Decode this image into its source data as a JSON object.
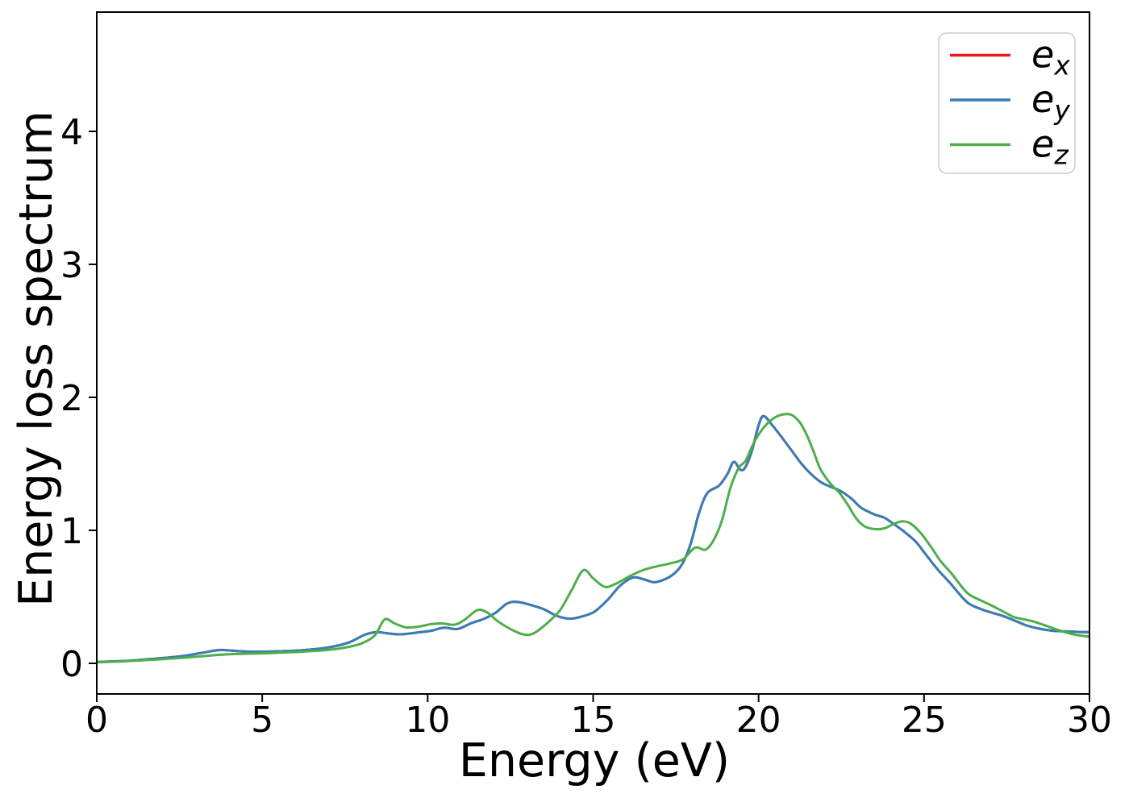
{
  "figure": {
    "background": "#ffffff"
  },
  "chart_data": {
    "type": "line",
    "title": "",
    "xlabel": "Energy (eV)",
    "ylabel": "Energy loss spectrum",
    "xlim": [
      0,
      30
    ],
    "ylim": [
      -0.23,
      4.9
    ],
    "xticks": [
      0,
      5,
      10,
      15,
      20,
      25,
      30
    ],
    "yticks": [
      0,
      1,
      2,
      3,
      4
    ],
    "grid": false,
    "legend_position": "upper right",
    "axis_color": "#000000",
    "legend_border_color": "#cccccc",
    "series": [
      {
        "name": "e_x",
        "label_main": "e",
        "label_sub": "x",
        "color": "#e41a1c",
        "visibility": "hidden under e_y (curves coincide)",
        "points": [
          [
            0,
            0.01
          ],
          [
            0.5,
            0.015
          ],
          [
            1,
            0.02
          ],
          [
            1.5,
            0.03
          ],
          [
            2,
            0.04
          ],
          [
            2.6,
            0.055
          ],
          [
            3.2,
            0.08
          ],
          [
            3.7,
            0.1
          ],
          [
            4.1,
            0.095
          ],
          [
            4.6,
            0.088
          ],
          [
            5.1,
            0.088
          ],
          [
            5.7,
            0.092
          ],
          [
            6.3,
            0.1
          ],
          [
            7,
            0.12
          ],
          [
            7.6,
            0.155
          ],
          [
            8.1,
            0.215
          ],
          [
            8.45,
            0.235
          ],
          [
            8.8,
            0.225
          ],
          [
            9.2,
            0.218
          ],
          [
            9.7,
            0.232
          ],
          [
            10.1,
            0.245
          ],
          [
            10.5,
            0.268
          ],
          [
            10.9,
            0.258
          ],
          [
            11.3,
            0.3
          ],
          [
            11.7,
            0.335
          ],
          [
            12.05,
            0.38
          ],
          [
            12.4,
            0.45
          ],
          [
            12.7,
            0.462
          ],
          [
            13.1,
            0.44
          ],
          [
            13.5,
            0.408
          ],
          [
            13.9,
            0.357
          ],
          [
            14.3,
            0.336
          ],
          [
            14.7,
            0.355
          ],
          [
            15.05,
            0.39
          ],
          [
            15.45,
            0.48
          ],
          [
            15.8,
            0.58
          ],
          [
            16.2,
            0.645
          ],
          [
            16.55,
            0.63
          ],
          [
            16.85,
            0.61
          ],
          [
            17.15,
            0.63
          ],
          [
            17.45,
            0.675
          ],
          [
            17.7,
            0.75
          ],
          [
            17.95,
            0.9
          ],
          [
            18.2,
            1.13
          ],
          [
            18.45,
            1.28
          ],
          [
            18.8,
            1.335
          ],
          [
            19.05,
            1.42
          ],
          [
            19.25,
            1.515
          ],
          [
            19.45,
            1.455
          ],
          [
            19.6,
            1.475
          ],
          [
            19.8,
            1.6
          ],
          [
            20,
            1.79
          ],
          [
            20.15,
            1.86
          ],
          [
            20.4,
            1.795
          ],
          [
            20.7,
            1.7
          ],
          [
            21,
            1.6
          ],
          [
            21.3,
            1.5
          ],
          [
            21.6,
            1.42
          ],
          [
            21.9,
            1.36
          ],
          [
            22.2,
            1.325
          ],
          [
            22.45,
            1.3
          ],
          [
            22.8,
            1.24
          ],
          [
            23.1,
            1.17
          ],
          [
            23.5,
            1.12
          ],
          [
            23.8,
            1.095
          ],
          [
            24.1,
            1.045
          ],
          [
            24.4,
            0.99
          ],
          [
            24.75,
            0.915
          ],
          [
            25.05,
            0.82
          ],
          [
            25.4,
            0.71
          ],
          [
            25.8,
            0.6
          ],
          [
            26.3,
            0.46
          ],
          [
            26.7,
            0.41
          ],
          [
            27,
            0.385
          ],
          [
            27.4,
            0.355
          ],
          [
            27.8,
            0.315
          ],
          [
            28.1,
            0.285
          ],
          [
            28.5,
            0.26
          ],
          [
            28.9,
            0.245
          ],
          [
            29.3,
            0.24
          ],
          [
            29.7,
            0.236
          ],
          [
            30,
            0.235
          ]
        ]
      },
      {
        "name": "e_y",
        "label_main": "e",
        "label_sub": "y",
        "color": "#377eb8",
        "visibility": "visible",
        "points": [
          [
            0,
            0.01
          ],
          [
            0.5,
            0.015
          ],
          [
            1,
            0.02
          ],
          [
            1.5,
            0.03
          ],
          [
            2,
            0.04
          ],
          [
            2.6,
            0.055
          ],
          [
            3.2,
            0.08
          ],
          [
            3.7,
            0.1
          ],
          [
            4.1,
            0.095
          ],
          [
            4.6,
            0.088
          ],
          [
            5.1,
            0.088
          ],
          [
            5.7,
            0.092
          ],
          [
            6.3,
            0.1
          ],
          [
            7,
            0.12
          ],
          [
            7.6,
            0.155
          ],
          [
            8.1,
            0.215
          ],
          [
            8.45,
            0.235
          ],
          [
            8.8,
            0.225
          ],
          [
            9.2,
            0.218
          ],
          [
            9.7,
            0.232
          ],
          [
            10.1,
            0.245
          ],
          [
            10.5,
            0.268
          ],
          [
            10.9,
            0.258
          ],
          [
            11.3,
            0.3
          ],
          [
            11.7,
            0.335
          ],
          [
            12.05,
            0.38
          ],
          [
            12.4,
            0.45
          ],
          [
            12.7,
            0.462
          ],
          [
            13.1,
            0.44
          ],
          [
            13.5,
            0.408
          ],
          [
            13.9,
            0.357
          ],
          [
            14.3,
            0.336
          ],
          [
            14.7,
            0.355
          ],
          [
            15.05,
            0.39
          ],
          [
            15.45,
            0.48
          ],
          [
            15.8,
            0.58
          ],
          [
            16.2,
            0.645
          ],
          [
            16.55,
            0.63
          ],
          [
            16.85,
            0.61
          ],
          [
            17.15,
            0.63
          ],
          [
            17.45,
            0.675
          ],
          [
            17.7,
            0.75
          ],
          [
            17.95,
            0.9
          ],
          [
            18.2,
            1.13
          ],
          [
            18.45,
            1.28
          ],
          [
            18.8,
            1.335
          ],
          [
            19.05,
            1.42
          ],
          [
            19.25,
            1.515
          ],
          [
            19.45,
            1.455
          ],
          [
            19.6,
            1.475
          ],
          [
            19.8,
            1.6
          ],
          [
            20,
            1.79
          ],
          [
            20.15,
            1.86
          ],
          [
            20.4,
            1.795
          ],
          [
            20.7,
            1.7
          ],
          [
            21,
            1.6
          ],
          [
            21.3,
            1.5
          ],
          [
            21.6,
            1.42
          ],
          [
            21.9,
            1.36
          ],
          [
            22.2,
            1.325
          ],
          [
            22.45,
            1.3
          ],
          [
            22.8,
            1.24
          ],
          [
            23.1,
            1.17
          ],
          [
            23.5,
            1.12
          ],
          [
            23.8,
            1.095
          ],
          [
            24.1,
            1.045
          ],
          [
            24.4,
            0.99
          ],
          [
            24.75,
            0.915
          ],
          [
            25.05,
            0.82
          ],
          [
            25.4,
            0.71
          ],
          [
            25.8,
            0.6
          ],
          [
            26.3,
            0.46
          ],
          [
            26.7,
            0.41
          ],
          [
            27,
            0.385
          ],
          [
            27.4,
            0.355
          ],
          [
            27.8,
            0.315
          ],
          [
            28.1,
            0.285
          ],
          [
            28.5,
            0.26
          ],
          [
            28.9,
            0.245
          ],
          [
            29.3,
            0.24
          ],
          [
            29.7,
            0.236
          ],
          [
            30,
            0.235
          ]
        ]
      },
      {
        "name": "e_z",
        "label_main": "e",
        "label_sub": "z",
        "color": "#4daf4a",
        "visibility": "visible",
        "points": [
          [
            0,
            0.008
          ],
          [
            0.5,
            0.012
          ],
          [
            1,
            0.018
          ],
          [
            1.5,
            0.025
          ],
          [
            2,
            0.032
          ],
          [
            2.5,
            0.04
          ],
          [
            3,
            0.05
          ],
          [
            3.5,
            0.06
          ],
          [
            4,
            0.068
          ],
          [
            4.5,
            0.072
          ],
          [
            5,
            0.075
          ],
          [
            5.5,
            0.08
          ],
          [
            6,
            0.085
          ],
          [
            6.5,
            0.092
          ],
          [
            7,
            0.102
          ],
          [
            7.5,
            0.118
          ],
          [
            8,
            0.15
          ],
          [
            8.4,
            0.21
          ],
          [
            8.7,
            0.33
          ],
          [
            9,
            0.3
          ],
          [
            9.35,
            0.27
          ],
          [
            9.75,
            0.277
          ],
          [
            10.1,
            0.295
          ],
          [
            10.45,
            0.3
          ],
          [
            10.8,
            0.29
          ],
          [
            11.1,
            0.325
          ],
          [
            11.5,
            0.4
          ],
          [
            11.8,
            0.382
          ],
          [
            12.1,
            0.32
          ],
          [
            12.5,
            0.258
          ],
          [
            12.9,
            0.217
          ],
          [
            13.2,
            0.225
          ],
          [
            13.6,
            0.3
          ],
          [
            14,
            0.4
          ],
          [
            14.35,
            0.55
          ],
          [
            14.7,
            0.7
          ],
          [
            15,
            0.64
          ],
          [
            15.35,
            0.575
          ],
          [
            15.7,
            0.6
          ],
          [
            16.1,
            0.655
          ],
          [
            16.5,
            0.7
          ],
          [
            16.9,
            0.728
          ],
          [
            17.3,
            0.75
          ],
          [
            17.7,
            0.78
          ],
          [
            18,
            0.855
          ],
          [
            18.15,
            0.872
          ],
          [
            18.4,
            0.855
          ],
          [
            18.65,
            0.93
          ],
          [
            18.9,
            1.08
          ],
          [
            19.15,
            1.32
          ],
          [
            19.4,
            1.47
          ],
          [
            19.6,
            1.52
          ],
          [
            19.8,
            1.63
          ],
          [
            20,
            1.72
          ],
          [
            20.25,
            1.8
          ],
          [
            20.5,
            1.85
          ],
          [
            20.75,
            1.872
          ],
          [
            21,
            1.868
          ],
          [
            21.25,
            1.81
          ],
          [
            21.45,
            1.72
          ],
          [
            21.65,
            1.6
          ],
          [
            21.85,
            1.47
          ],
          [
            22.05,
            1.39
          ],
          [
            22.25,
            1.33
          ],
          [
            22.45,
            1.28
          ],
          [
            22.7,
            1.19
          ],
          [
            22.95,
            1.09
          ],
          [
            23.2,
            1.03
          ],
          [
            23.5,
            1.01
          ],
          [
            23.8,
            1.015
          ],
          [
            24.1,
            1.05
          ],
          [
            24.35,
            1.068
          ],
          [
            24.6,
            1.05
          ],
          [
            24.9,
            0.98
          ],
          [
            25.2,
            0.88
          ],
          [
            25.5,
            0.77
          ],
          [
            25.85,
            0.67
          ],
          [
            26.3,
            0.53
          ],
          [
            26.7,
            0.475
          ],
          [
            27,
            0.44
          ],
          [
            27.35,
            0.395
          ],
          [
            27.7,
            0.35
          ],
          [
            28,
            0.332
          ],
          [
            28.3,
            0.315
          ],
          [
            28.6,
            0.29
          ],
          [
            29,
            0.255
          ],
          [
            29.4,
            0.225
          ],
          [
            29.7,
            0.21
          ],
          [
            30,
            0.2
          ]
        ]
      }
    ]
  }
}
